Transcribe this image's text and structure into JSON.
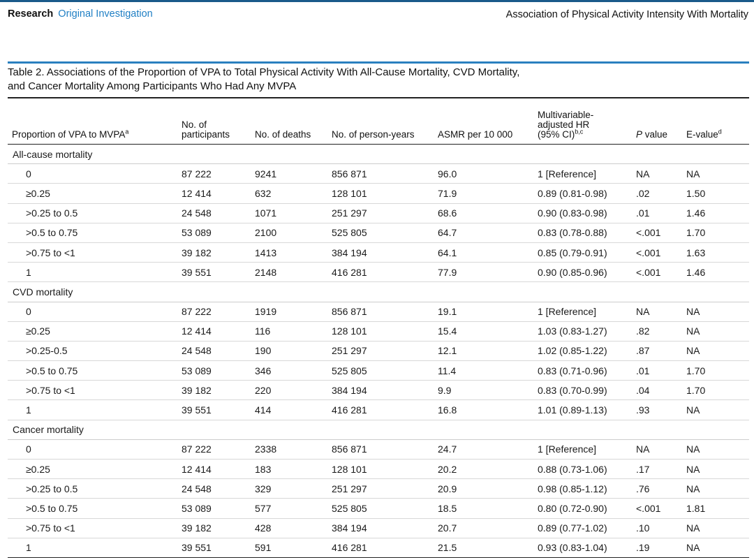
{
  "header": {
    "section": "Research",
    "subsection": "Original Investigation",
    "running_title": "Association of Physical Activity Intensity With Mortality"
  },
  "table": {
    "caption_line1": "Table 2. Associations of the Proportion of VPA to Total Physical Activity With All-Cause Mortality, CVD Mortality,",
    "caption_line2": "and Cancer Mortality Among Participants Who Had Any MVPA",
    "columns": {
      "proportion": "Proportion of VPA to MVPA",
      "proportion_sup": "a",
      "participants_1": "No. of",
      "participants_2": "participants",
      "deaths": "No. of deaths",
      "person_years": "No. of person-years",
      "asmr": "ASMR per 10 000",
      "hr_1": "Multivariable-",
      "hr_2": "adjusted HR",
      "hr_3": "(95% CI)",
      "hr_sup": "b,c",
      "p_italic": "P",
      "p_rest": " value",
      "evalue": "E-value",
      "evalue_sup": "d"
    },
    "sections": [
      {
        "title": "All-cause mortality",
        "rows": [
          [
            "0",
            "87 222",
            "9241",
            "856 871",
            "96.0",
            "1 [Reference]",
            "NA",
            "NA"
          ],
          [
            "≥0.25",
            "12 414",
            "632",
            "128 101",
            "71.9",
            "0.89 (0.81-0.98)",
            ".02",
            "1.50"
          ],
          [
            ">0.25 to 0.5",
            "24 548",
            "1071",
            "251 297",
            "68.6",
            "0.90 (0.83-0.98)",
            ".01",
            "1.46"
          ],
          [
            ">0.5 to 0.75",
            "53 089",
            "2100",
            "525 805",
            "64.7",
            "0.83 (0.78-0.88)",
            "<.001",
            "1.70"
          ],
          [
            ">0.75 to <1",
            "39 182",
            "1413",
            "384 194",
            "64.1",
            "0.85 (0.79-0.91)",
            "<.001",
            "1.63"
          ],
          [
            "1",
            "39 551",
            "2148",
            "416 281",
            "77.9",
            "0.90 (0.85-0.96)",
            "<.001",
            "1.46"
          ]
        ]
      },
      {
        "title": "CVD mortality",
        "rows": [
          [
            "0",
            "87 222",
            "1919",
            "856 871",
            "19.1",
            "1 [Reference]",
            "NA",
            "NA"
          ],
          [
            "≥0.25",
            "12 414",
            "116",
            "128 101",
            "15.4",
            "1.03 (0.83-1.27)",
            ".82",
            "NA"
          ],
          [
            ">0.25-0.5",
            "24 548",
            "190",
            "251 297",
            "12.1",
            "1.02 (0.85-1.22)",
            ".87",
            "NA"
          ],
          [
            ">0.5 to 0.75",
            "53 089",
            "346",
            "525 805",
            "11.4",
            "0.83 (0.71-0.96)",
            ".01",
            "1.70"
          ],
          [
            ">0.75 to <1",
            "39 182",
            "220",
            "384 194",
            "9.9",
            "0.83 (0.70-0.99)",
            ".04",
            "1.70"
          ],
          [
            "1",
            "39 551",
            "414",
            "416 281",
            "16.8",
            "1.01 (0.89-1.13)",
            ".93",
            "NA"
          ]
        ]
      },
      {
        "title": "Cancer mortality",
        "rows": [
          [
            "0",
            "87 222",
            "2338",
            "856 871",
            "24.7",
            "1 [Reference]",
            "NA",
            "NA"
          ],
          [
            "≥0.25",
            "12 414",
            "183",
            "128 101",
            "20.2",
            "0.88 (0.73-1.06)",
            ".17",
            "NA"
          ],
          [
            ">0.25 to 0.5",
            "24 548",
            "329",
            "251 297",
            "20.9",
            "0.98 (0.85-1.12)",
            ".76",
            "NA"
          ],
          [
            ">0.5 to 0.75",
            "53 089",
            "577",
            "525 805",
            "18.5",
            "0.80 (0.72-0.90)",
            "<.001",
            "1.81"
          ],
          [
            ">0.75 to <1",
            "39 182",
            "428",
            "384 194",
            "20.7",
            "0.89 (0.77-1.02)",
            ".10",
            "NA"
          ],
          [
            "1",
            "39 551",
            "591",
            "416 281",
            "21.5",
            "0.93 (0.83-1.04)",
            ".19",
            "NA"
          ]
        ]
      }
    ]
  },
  "colors": {
    "accent": "#1f7fc4",
    "rule": "#2a80bf"
  }
}
